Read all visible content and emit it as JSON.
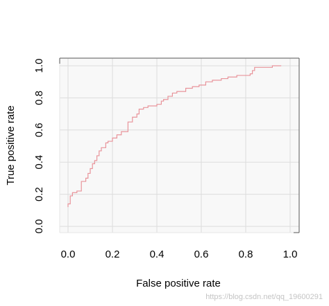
{
  "chart_data": {
    "type": "line",
    "title": "",
    "xlabel": "False positive rate",
    "ylabel": "True positive rate",
    "xlim": [
      0.0,
      1.0
    ],
    "ylim": [
      0.0,
      1.0
    ],
    "x_ticks": [
      "0.0",
      "0.2",
      "0.4",
      "0.6",
      "0.8",
      "1.0"
    ],
    "y_ticks": [
      "0.0",
      "0.2",
      "0.4",
      "0.6",
      "0.8",
      "1.0"
    ],
    "grid": true,
    "background_color": "#f8f8f8",
    "grid_color": "#dcdcdc",
    "series": [
      {
        "color": "#e8939a",
        "points": [
          [
            0.0,
            0.12
          ],
          [
            0.0,
            0.14
          ],
          [
            0.01,
            0.14
          ],
          [
            0.01,
            0.19
          ],
          [
            0.02,
            0.19
          ],
          [
            0.02,
            0.21
          ],
          [
            0.04,
            0.21
          ],
          [
            0.04,
            0.22
          ],
          [
            0.06,
            0.22
          ],
          [
            0.06,
            0.28
          ],
          [
            0.08,
            0.28
          ],
          [
            0.08,
            0.3
          ],
          [
            0.09,
            0.3
          ],
          [
            0.09,
            0.33
          ],
          [
            0.1,
            0.33
          ],
          [
            0.1,
            0.36
          ],
          [
            0.11,
            0.36
          ],
          [
            0.11,
            0.39
          ],
          [
            0.12,
            0.39
          ],
          [
            0.12,
            0.41
          ],
          [
            0.13,
            0.41
          ],
          [
            0.13,
            0.44
          ],
          [
            0.14,
            0.44
          ],
          [
            0.14,
            0.47
          ],
          [
            0.15,
            0.47
          ],
          [
            0.15,
            0.49
          ],
          [
            0.17,
            0.49
          ],
          [
            0.17,
            0.52
          ],
          [
            0.18,
            0.52
          ],
          [
            0.18,
            0.53
          ],
          [
            0.2,
            0.53
          ],
          [
            0.2,
            0.55
          ],
          [
            0.22,
            0.55
          ],
          [
            0.22,
            0.57
          ],
          [
            0.24,
            0.57
          ],
          [
            0.24,
            0.59
          ],
          [
            0.27,
            0.59
          ],
          [
            0.27,
            0.65
          ],
          [
            0.29,
            0.65
          ],
          [
            0.29,
            0.68
          ],
          [
            0.31,
            0.68
          ],
          [
            0.31,
            0.7
          ],
          [
            0.32,
            0.7
          ],
          [
            0.32,
            0.73
          ],
          [
            0.34,
            0.73
          ],
          [
            0.34,
            0.74
          ],
          [
            0.36,
            0.74
          ],
          [
            0.36,
            0.75
          ],
          [
            0.4,
            0.75
          ],
          [
            0.4,
            0.76
          ],
          [
            0.42,
            0.76
          ],
          [
            0.42,
            0.78
          ],
          [
            0.43,
            0.78
          ],
          [
            0.43,
            0.79
          ],
          [
            0.45,
            0.79
          ],
          [
            0.45,
            0.81
          ],
          [
            0.47,
            0.81
          ],
          [
            0.47,
            0.83
          ],
          [
            0.49,
            0.83
          ],
          [
            0.49,
            0.84
          ],
          [
            0.53,
            0.84
          ],
          [
            0.53,
            0.86
          ],
          [
            0.56,
            0.86
          ],
          [
            0.56,
            0.87
          ],
          [
            0.59,
            0.87
          ],
          [
            0.59,
            0.88
          ],
          [
            0.62,
            0.88
          ],
          [
            0.62,
            0.9
          ],
          [
            0.65,
            0.9
          ],
          [
            0.65,
            0.91
          ],
          [
            0.69,
            0.91
          ],
          [
            0.69,
            0.92
          ],
          [
            0.72,
            0.92
          ],
          [
            0.72,
            0.93
          ],
          [
            0.76,
            0.93
          ],
          [
            0.76,
            0.94
          ],
          [
            0.82,
            0.94
          ],
          [
            0.82,
            0.95
          ],
          [
            0.83,
            0.95
          ],
          [
            0.83,
            0.97
          ],
          [
            0.84,
            0.97
          ],
          [
            0.84,
            0.99
          ],
          [
            0.92,
            0.99
          ],
          [
            0.92,
            1.0
          ],
          [
            0.96,
            1.0
          ]
        ]
      }
    ]
  },
  "watermark": "https://blog.csdn.net/qq_19600291"
}
